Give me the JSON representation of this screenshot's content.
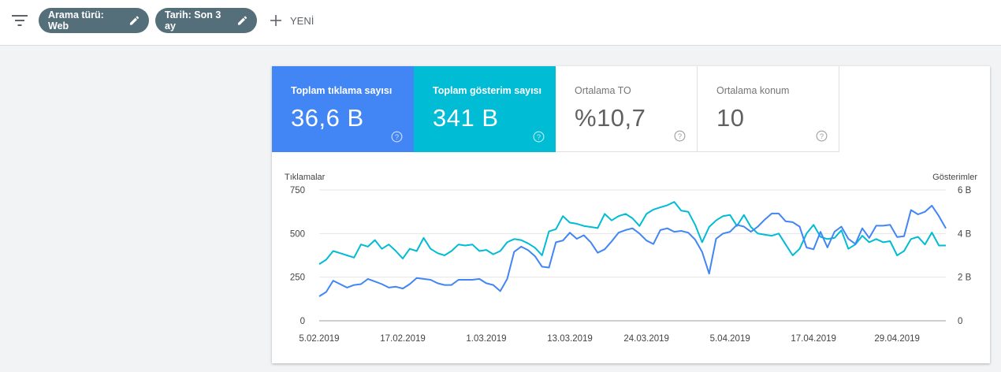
{
  "toolbar": {
    "chips": [
      {
        "label": "Arama türü: Web"
      },
      {
        "label": "Tarih: Son 3 ay"
      }
    ],
    "new_label": "YENİ"
  },
  "metrics": [
    {
      "label": "Toplam tıklama sayısı",
      "value": "36,6 B"
    },
    {
      "label": "Toplam gösterim sayısı",
      "value": "341 B"
    },
    {
      "label": "Ortalama TO",
      "value": "%10,7"
    },
    {
      "label": "Ortalama konum",
      "value": "10"
    }
  ],
  "colors": {
    "clicks": "#4285f4",
    "impressions": "#00bcd4",
    "chip_bg": "#546e7a"
  },
  "chart_data": {
    "type": "line",
    "y_left_label": "Tıklamalar",
    "y_right_label": "Gösterimler",
    "y_left_ticks": [
      "0",
      "250",
      "500",
      "750"
    ],
    "y_right_ticks": [
      "0",
      "2 B",
      "4 B",
      "6 B"
    ],
    "y_left_range": [
      0,
      750
    ],
    "y_right_range": [
      0,
      6
    ],
    "x_tick_labels": [
      "5.02.2019",
      "17.02.2019",
      "1.03.2019",
      "13.03.2019",
      "24.03.2019",
      "5.04.2019",
      "17.04.2019",
      "29.04.2019"
    ],
    "x_tick_index": [
      0,
      12,
      24,
      36,
      47,
      59,
      71,
      83
    ],
    "series": [
      {
        "name": "Tıklamalar",
        "axis": "left",
        "values": [
          140,
          165,
          230,
          210,
          190,
          205,
          210,
          240,
          225,
          210,
          190,
          195,
          185,
          210,
          245,
          240,
          235,
          215,
          205,
          205,
          235,
          235,
          235,
          240,
          215,
          205,
          170,
          240,
          395,
          425,
          405,
          370,
          310,
          305,
          450,
          460,
          505,
          470,
          490,
          450,
          390,
          410,
          455,
          505,
          520,
          530,
          500,
          460,
          440,
          520,
          530,
          510,
          515,
          505,
          465,
          395,
          270,
          470,
          500,
          510,
          550,
          540,
          510,
          540,
          580,
          615,
          615,
          570,
          565,
          540,
          420,
          410,
          510,
          420,
          510,
          540,
          470,
          440,
          530,
          475,
          545,
          545,
          550,
          480,
          485,
          635,
          610,
          625,
          660,
          600,
          530
        ]
      },
      {
        "name": "Gösterimler",
        "axis": "right",
        "values": [
          2.6,
          2.8,
          3.2,
          3.1,
          3.0,
          2.9,
          3.5,
          3.4,
          3.7,
          3.3,
          3.5,
          3.2,
          2.85,
          3.3,
          3.2,
          3.8,
          3.3,
          3.1,
          3.0,
          3.2,
          3.5,
          3.45,
          3.5,
          3.2,
          3.25,
          3.05,
          3.2,
          3.6,
          3.75,
          3.7,
          3.55,
          3.35,
          3.0,
          4.1,
          4.2,
          4.8,
          4.5,
          4.45,
          4.35,
          4.3,
          4.25,
          4.9,
          4.6,
          4.8,
          4.9,
          4.7,
          4.35,
          4.9,
          5.1,
          5.2,
          5.3,
          5.45,
          5.05,
          5.0,
          4.4,
          3.6,
          4.3,
          4.6,
          4.8,
          4.85,
          4.35,
          4.85,
          4.3,
          4.0,
          3.95,
          3.9,
          4.0,
          3.5,
          3.0,
          3.3,
          4.0,
          4.4,
          3.85,
          3.75,
          3.8,
          4.15,
          3.3,
          3.5,
          3.9,
          3.6,
          3.75,
          3.6,
          3.65,
          3.0,
          3.2,
          3.75,
          3.85,
          3.5,
          4.05,
          3.45,
          3.45
        ]
      }
    ]
  }
}
